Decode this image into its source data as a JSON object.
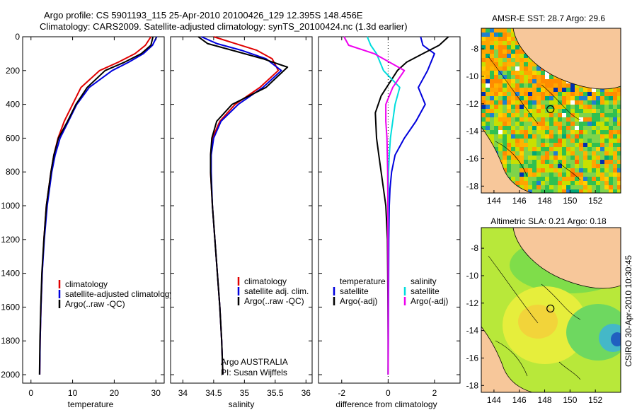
{
  "header": {
    "line1": "Argo profile: CS 5901193_115 25-Apr-2010 20100426_129 12.395S 148.456E",
    "line2": "Climatology: CARS2009. Satellite-adjusted climatology: synTS_20100424.nc (1.3d earlier)"
  },
  "credits": {
    "program": "Argo AUSTRALIA",
    "pi": "PI: Susan Wijffels",
    "stamp": "CSIRO 30-Apr-2010 10:30:45"
  },
  "colors": {
    "climatology": "#e00000",
    "satellite": "#0000dd",
    "argo": "#000000",
    "argo_adj_salinity": "#ee00ee",
    "satellite_salinity": "#00dddd"
  },
  "chart_data": [
    {
      "type": "line",
      "panel": "temperature",
      "xlabel": "temperature",
      "ylabel": "",
      "xlim": [
        -2,
        32
      ],
      "ylim": [
        2050,
        0
      ],
      "y_reversed": true,
      "xticks": [
        0,
        10,
        20,
        30
      ],
      "yticks": [
        0,
        200,
        400,
        600,
        800,
        1000,
        1200,
        1400,
        1600,
        1800,
        2000
      ],
      "legend": [
        "climatology",
        "satellite-adjusted climatology",
        "Argo(..raw -QC)"
      ],
      "series": [
        {
          "name": "climatology",
          "color": "#e00000",
          "x": [
            28.8,
            27.5,
            25.0,
            21.0,
            16.5,
            12.0,
            10.0,
            8.0,
            6.5,
            5.5,
            4.8,
            3.7,
            3.1,
            2.7,
            2.4,
            2.2,
            2.1
          ],
          "y": [
            0,
            50,
            100,
            150,
            200,
            300,
            400,
            500,
            600,
            700,
            800,
            1000,
            1200,
            1400,
            1600,
            1800,
            2000
          ]
        },
        {
          "name": "satellite-adjusted climatology",
          "color": "#0000dd",
          "x": [
            30.2,
            29.2,
            27.0,
            23.5,
            19.5,
            14.0,
            11.0,
            9.0,
            7.0,
            5.8,
            5.0,
            3.9,
            3.2,
            2.7,
            2.4,
            2.2,
            2.1
          ],
          "y": [
            0,
            50,
            100,
            150,
            200,
            300,
            400,
            500,
            600,
            700,
            800,
            1000,
            1200,
            1400,
            1600,
            1800,
            2000
          ]
        },
        {
          "name": "Argo(..raw -QC)",
          "color": "#000000",
          "x": [
            29.3,
            28.8,
            26.5,
            22.5,
            17.8,
            13.5,
            10.8,
            8.8,
            6.6,
            5.5,
            4.8,
            3.7,
            3.1,
            2.6,
            2.35,
            2.15,
            2.05
          ],
          "y": [
            0,
            50,
            100,
            150,
            200,
            300,
            400,
            500,
            600,
            700,
            800,
            1000,
            1200,
            1400,
            1600,
            1800,
            2000
          ]
        }
      ]
    },
    {
      "type": "line",
      "panel": "salinity",
      "xlabel": "salinity",
      "ylabel": "",
      "xlim": [
        33.8,
        36.1
      ],
      "ylim": [
        2050,
        0
      ],
      "y_reversed": true,
      "xticks": [
        34,
        34.5,
        35,
        35.5,
        36
      ],
      "yticks": [
        0,
        200,
        400,
        600,
        800,
        1000,
        1200,
        1400,
        1600,
        1800,
        2000
      ],
      "legend": [
        "climatology",
        "satellite adj. clim.",
        "Argo(..raw -QC)"
      ],
      "series": [
        {
          "name": "climatology",
          "color": "#e00000",
          "x": [
            34.5,
            34.85,
            35.2,
            35.45,
            35.55,
            35.25,
            34.85,
            34.6,
            34.48,
            34.45,
            34.45,
            34.48,
            34.52,
            34.56,
            34.6,
            34.63,
            34.65
          ],
          "y": [
            0,
            40,
            80,
            130,
            200,
            300,
            400,
            500,
            600,
            700,
            800,
            1000,
            1200,
            1400,
            1600,
            1800,
            2000
          ]
        },
        {
          "name": "satellite adj. clim.",
          "color": "#0000dd",
          "x": [
            34.3,
            34.55,
            34.95,
            35.35,
            35.6,
            35.3,
            34.9,
            34.62,
            34.5,
            34.46,
            34.46,
            34.48,
            34.52,
            34.56,
            34.6,
            34.63,
            34.65
          ],
          "y": [
            0,
            40,
            80,
            130,
            200,
            300,
            400,
            500,
            600,
            700,
            800,
            1000,
            1200,
            1400,
            1600,
            1800,
            2000
          ]
        },
        {
          "name": "Argo(..raw -QC)",
          "color": "#000000",
          "x": [
            34.25,
            34.4,
            34.8,
            35.3,
            35.7,
            35.35,
            34.8,
            34.55,
            34.47,
            34.45,
            34.45,
            34.48,
            34.52,
            34.56,
            34.6,
            34.63,
            34.65
          ],
          "y": [
            0,
            40,
            80,
            130,
            180,
            300,
            400,
            500,
            600,
            700,
            800,
            1000,
            1200,
            1400,
            1600,
            1800,
            2000
          ]
        }
      ]
    },
    {
      "type": "line",
      "panel": "difference",
      "xlabel": "difference from climatology",
      "ylabel": "",
      "xlim": [
        -3,
        3.1
      ],
      "ylim": [
        2050,
        0
      ],
      "y_reversed": true,
      "xticks": [
        -2,
        0,
        2
      ],
      "yticks": [
        0,
        200,
        400,
        600,
        800,
        1000,
        1200,
        1400,
        1600,
        1800,
        2000
      ],
      "zero_line": "dotted",
      "legend_headers": [
        "temperature",
        "salinity"
      ],
      "legend": [
        "satellite",
        "Argo(-adj)",
        "satellite",
        "Argo(-adj)"
      ],
      "series": [
        {
          "name": "temperature satellite",
          "color": "#0000dd",
          "x": [
            1.4,
            1.5,
            2.0,
            1.7,
            1.3,
            1.6,
            1.2,
            0.7,
            0.3,
            0.15,
            0.08,
            0.05,
            0.03,
            0.02,
            0.01,
            0.0
          ],
          "y": [
            0,
            50,
            100,
            200,
            300,
            400,
            500,
            600,
            700,
            800,
            900,
            1000,
            1200,
            1500,
            1800,
            2000
          ]
        },
        {
          "name": "temperature Argo(-adj)",
          "color": "#000000",
          "x": [
            2.6,
            2.2,
            1.5,
            0.8,
            0.4,
            -0.3,
            -0.55,
            -0.5,
            -0.4,
            -0.3,
            -0.2,
            -0.1,
            -0.03,
            -0.01,
            0.0,
            0.0
          ],
          "y": [
            0,
            50,
            100,
            150,
            200,
            350,
            450,
            600,
            700,
            800,
            900,
            1000,
            1200,
            1500,
            1800,
            2000
          ]
        },
        {
          "name": "salinity satellite",
          "color": "#00dddd",
          "x": [
            -0.9,
            -0.75,
            -0.5,
            -0.2,
            0.5,
            0.3,
            0.2,
            0.1,
            0.05,
            0.02,
            0.01,
            0.0,
            0.0,
            0.0
          ],
          "y": [
            0,
            50,
            100,
            200,
            300,
            400,
            500,
            600,
            700,
            800,
            1000,
            1200,
            1600,
            2000
          ]
        },
        {
          "name": "salinity Argo(-adj)",
          "color": "#ee00ee",
          "x": [
            -1.9,
            -1.7,
            -0.6,
            0.7,
            0.2,
            -0.1,
            -0.1,
            -0.05,
            -0.02,
            -0.01,
            0.0,
            0.0
          ],
          "y": [
            0,
            50,
            100,
            200,
            300,
            400,
            500,
            600,
            800,
            1000,
            1500,
            2000
          ]
        }
      ]
    },
    {
      "type": "heatmap",
      "panel": "sst_map",
      "title": "AMSR-E SST: 28.7 Argo: 29.6",
      "xlim": [
        143,
        154
      ],
      "ylim": [
        -18.5,
        -6.5
      ],
      "xticks": [
        144,
        146,
        148,
        150,
        152
      ],
      "yticks": [
        -8,
        -10,
        -12,
        -14,
        -16,
        -18
      ],
      "argo_location": {
        "lon": 148.456,
        "lat": -12.395
      }
    },
    {
      "type": "heatmap",
      "panel": "sla_map",
      "title": "Altimetric SLA: 0.21 Argo: 0.18",
      "xlim": [
        143,
        154
      ],
      "ylim": [
        -18.5,
        -6.5
      ],
      "xticks": [
        144,
        146,
        148,
        150,
        152
      ],
      "yticks": [
        -8,
        -10,
        -12,
        -14,
        -16,
        -18
      ],
      "argo_location": {
        "lon": 148.456,
        "lat": -12.395
      }
    }
  ]
}
